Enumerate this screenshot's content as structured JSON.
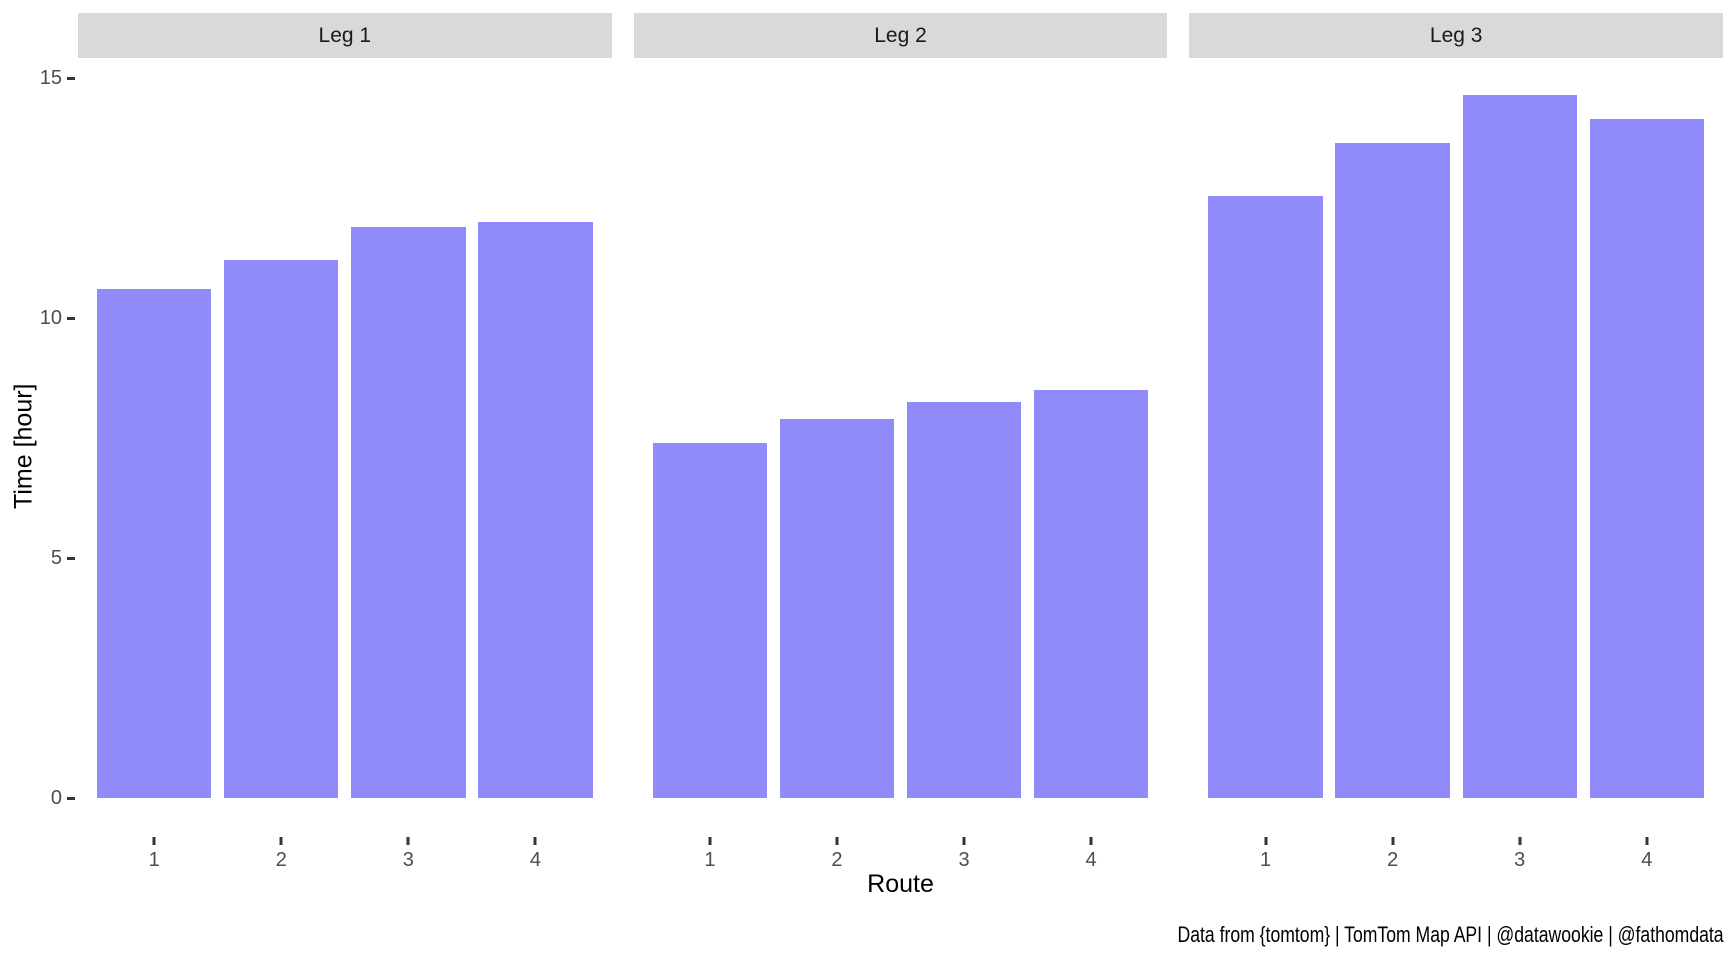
{
  "caption": "Data from {tomtom} | TomTom Map API | @datawookie | @fathomdata",
  "colors": {
    "bar_fill": "#918AFA",
    "strip_background": "#D9D9D9",
    "strip_text": "#1A1A1A",
    "axis_tick_label": "#4D4D4D",
    "axis_tick_mark": "#333333",
    "axis_title": "#000000",
    "background": "#FFFFFF"
  },
  "chart_data": {
    "type": "bar",
    "title": "",
    "xlabel": "Route",
    "ylabel": "Time [hour]",
    "facet_variable": "Leg",
    "legend": "none",
    "grid": false,
    "y_ticks": [
      0,
      5,
      10,
      15
    ],
    "ylim": [
      0,
      15.4
    ],
    "categories": [
      "1",
      "2",
      "3",
      "4"
    ],
    "facets": [
      {
        "label": "Leg 1",
        "values": [
          10.6,
          11.2,
          11.9,
          12.0
        ]
      },
      {
        "label": "Leg 2",
        "values": [
          7.4,
          7.9,
          8.25,
          8.5
        ]
      },
      {
        "label": "Leg 3",
        "values": [
          12.55,
          13.65,
          14.65,
          14.15
        ]
      }
    ]
  }
}
